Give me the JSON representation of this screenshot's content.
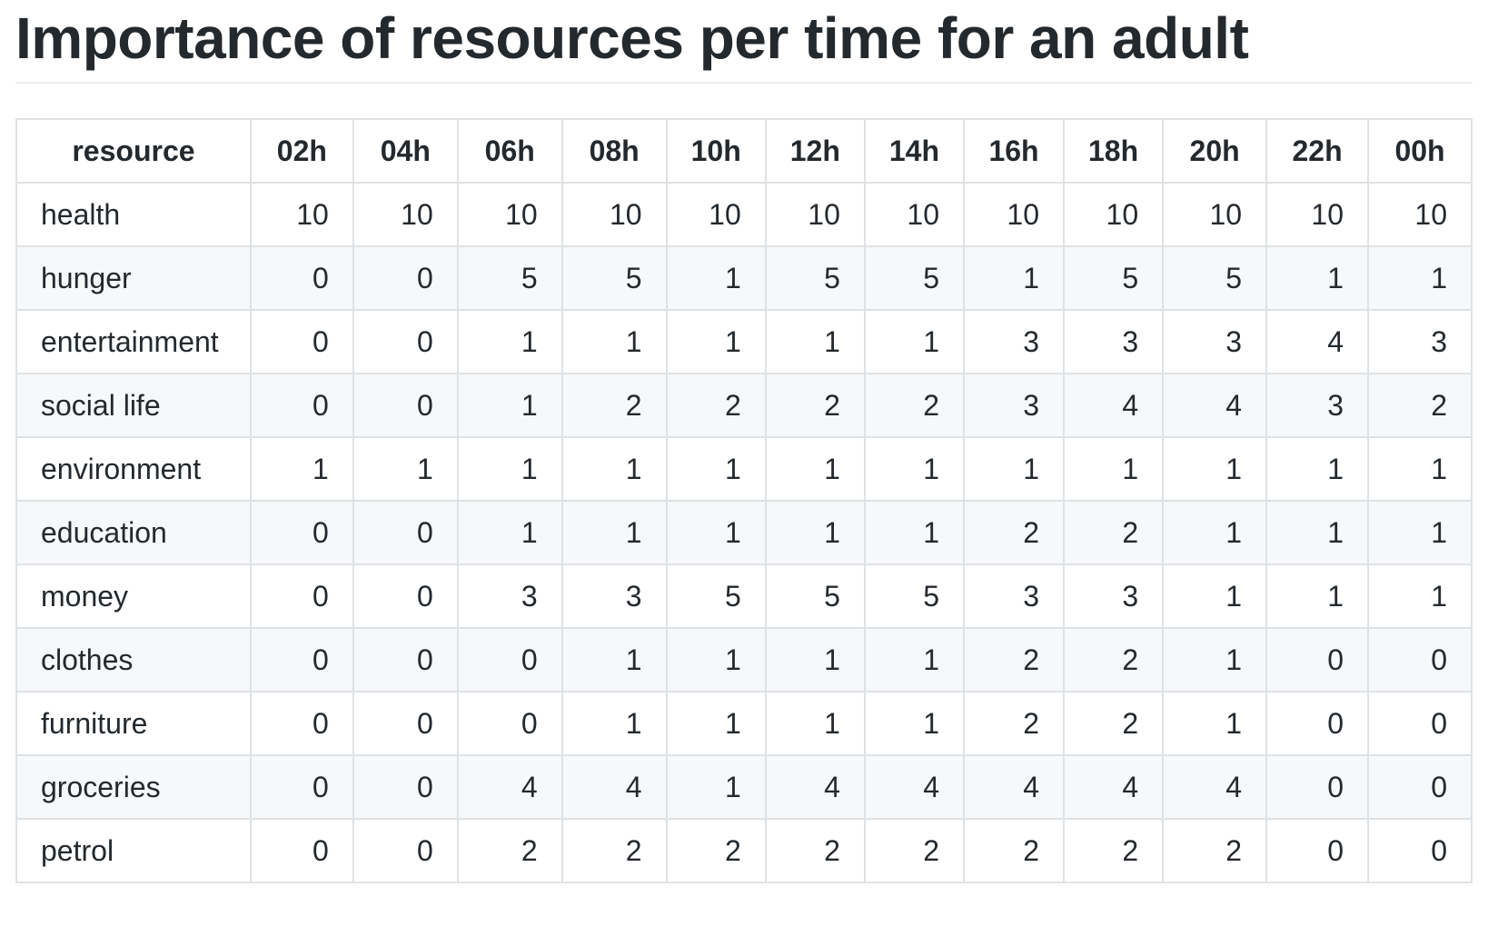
{
  "document": {
    "title": "Importance of resources per time for an adult"
  },
  "table": {
    "headers": [
      "resource",
      "02h",
      "04h",
      "06h",
      "08h",
      "10h",
      "12h",
      "14h",
      "16h",
      "18h",
      "20h",
      "22h",
      "00h"
    ],
    "rows": [
      {
        "resource": "health",
        "values": [
          "10",
          "10",
          "10",
          "10",
          "10",
          "10",
          "10",
          "10",
          "10",
          "10",
          "10",
          "10"
        ]
      },
      {
        "resource": "hunger",
        "values": [
          "0",
          "0",
          "5",
          "5",
          "1",
          "5",
          "5",
          "1",
          "5",
          "5",
          "1",
          "1"
        ]
      },
      {
        "resource": "entertainment",
        "values": [
          "0",
          "0",
          "1",
          "1",
          "1",
          "1",
          "1",
          "3",
          "3",
          "3",
          "4",
          "3"
        ]
      },
      {
        "resource": "social life",
        "values": [
          "0",
          "0",
          "1",
          "2",
          "2",
          "2",
          "2",
          "3",
          "4",
          "4",
          "3",
          "2"
        ]
      },
      {
        "resource": "environment",
        "values": [
          "1",
          "1",
          "1",
          "1",
          "1",
          "1",
          "1",
          "1",
          "1",
          "1",
          "1",
          "1"
        ]
      },
      {
        "resource": "education",
        "values": [
          "0",
          "0",
          "1",
          "1",
          "1",
          "1",
          "1",
          "2",
          "2",
          "1",
          "1",
          "1"
        ]
      },
      {
        "resource": "money",
        "values": [
          "0",
          "0",
          "3",
          "3",
          "5",
          "5",
          "5",
          "3",
          "3",
          "1",
          "1",
          "1"
        ]
      },
      {
        "resource": "clothes",
        "values": [
          "0",
          "0",
          "0",
          "1",
          "1",
          "1",
          "1",
          "2",
          "2",
          "1",
          "0",
          "0"
        ]
      },
      {
        "resource": "furniture",
        "values": [
          "0",
          "0",
          "0",
          "1",
          "1",
          "1",
          "1",
          "2",
          "2",
          "1",
          "0",
          "0"
        ]
      },
      {
        "resource": "groceries",
        "values": [
          "0",
          "0",
          "4",
          "4",
          "1",
          "4",
          "4",
          "4",
          "4",
          "4",
          "0",
          "0"
        ]
      },
      {
        "resource": "petrol",
        "values": [
          "0",
          "0",
          "2",
          "2",
          "2",
          "2",
          "2",
          "2",
          "2",
          "2",
          "0",
          "0"
        ]
      }
    ]
  }
}
